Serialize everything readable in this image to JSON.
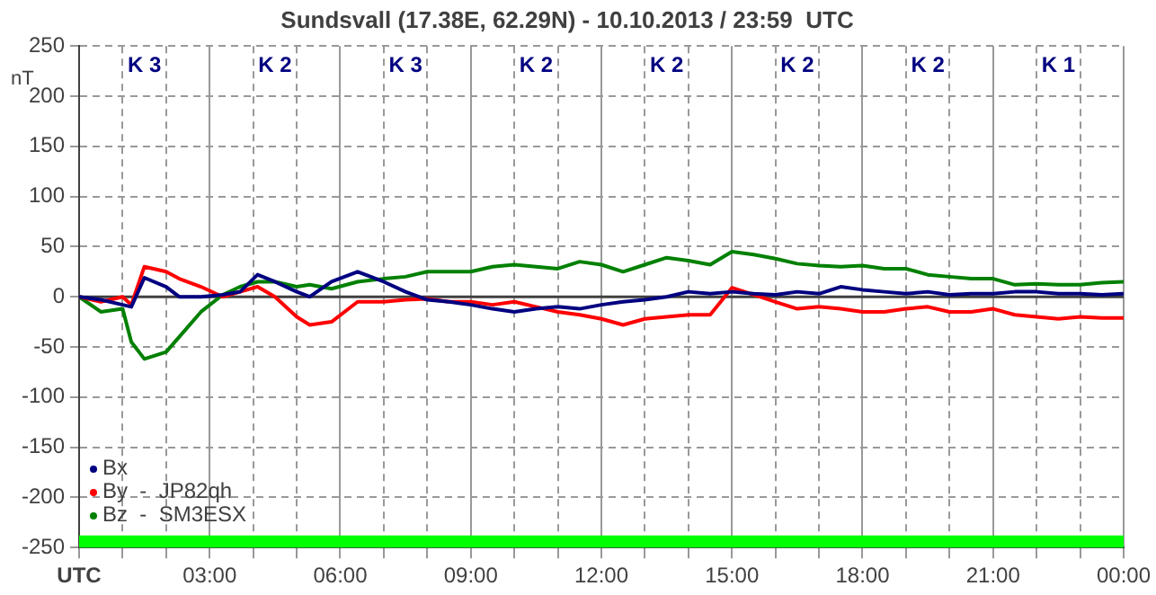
{
  "chart_data": {
    "type": "line",
    "title": "Sundsvall (17.38E, 62.29N) - 10.10.2013 / 23:59  UTC",
    "ylabel": "nT",
    "annotations": [
      "K 3",
      "K 2",
      "K 3",
      "K 2",
      "K 2",
      "K 2",
      "K 2",
      "K 1"
    ],
    "xlim": [
      0,
      24
    ],
    "xticks": [
      {
        "value": 0,
        "label": "UTC"
      },
      {
        "value": 1,
        "label": null
      },
      {
        "value": 2,
        "label": null
      },
      {
        "value": 3,
        "label": "03:00"
      },
      {
        "value": 4,
        "label": null
      },
      {
        "value": 5,
        "label": null
      },
      {
        "value": 6,
        "label": "06:00"
      },
      {
        "value": 7,
        "label": null
      },
      {
        "value": 8,
        "label": null
      },
      {
        "value": 9,
        "label": "09:00"
      },
      {
        "value": 10,
        "label": null
      },
      {
        "value": 11,
        "label": null
      },
      {
        "value": 12,
        "label": "12:00"
      },
      {
        "value": 13,
        "label": null
      },
      {
        "value": 14,
        "label": null
      },
      {
        "value": 15,
        "label": "15:00"
      },
      {
        "value": 16,
        "label": null
      },
      {
        "value": 17,
        "label": null
      },
      {
        "value": 18,
        "label": "18:00"
      },
      {
        "value": 19,
        "label": null
      },
      {
        "value": 20,
        "label": null
      },
      {
        "value": 21,
        "label": "21:00"
      },
      {
        "value": 22,
        "label": null
      },
      {
        "value": 23,
        "label": null
      },
      {
        "value": 24,
        "label": "00:00"
      }
    ],
    "ylim": [
      -250,
      250
    ],
    "yticks": [
      -250,
      -200,
      -150,
      -100,
      -50,
      0,
      50,
      100,
      150,
      200,
      250
    ],
    "grid": true,
    "legend": "bottom left",
    "marker": "none",
    "line_style": "solid",
    "ref_lines": [
      {
        "axis": "y",
        "value": 0,
        "color": "#404040"
      }
    ],
    "bands": [
      {
        "axis": "y",
        "from": -250,
        "to": -238,
        "color": "#00ff00"
      }
    ],
    "x": [
      0,
      0.5,
      1,
      1.2,
      1.5,
      2,
      2.3,
      2.8,
      3.3,
      3.7,
      4.1,
      4.5,
      5,
      5.3,
      5.8,
      6.4,
      7,
      7.5,
      8,
      8.5,
      9,
      9.5,
      10,
      10.5,
      11,
      11.5,
      12,
      12.5,
      13,
      13.5,
      14,
      14.5,
      15,
      15.5,
      16,
      16.5,
      17,
      17.5,
      18,
      18.5,
      19,
      19.5,
      20,
      20.5,
      21,
      21.5,
      22,
      22.5,
      23,
      23.5,
      24
    ],
    "series": [
      {
        "name": "Bx",
        "color": "#000080",
        "values": [
          0,
          -3,
          -8,
          -10,
          19,
          10,
          0,
          0,
          2,
          5,
          22,
          15,
          5,
          0,
          15,
          25,
          15,
          5,
          -3,
          -5,
          -8,
          -12,
          -15,
          -12,
          -10,
          -12,
          -8,
          -5,
          -3,
          0,
          5,
          3,
          5,
          3,
          2,
          5,
          3,
          10,
          7,
          5,
          3,
          5,
          2,
          3,
          3,
          5,
          5,
          3,
          3,
          2,
          3
        ]
      },
      {
        "name": "By  -  JP82qh",
        "color": "#ff0000",
        "values": [
          0,
          -5,
          0,
          -8,
          30,
          25,
          18,
          10,
          0,
          5,
          10,
          0,
          -20,
          -28,
          -25,
          -5,
          -5,
          -3,
          -2,
          -5,
          -5,
          -8,
          -5,
          -10,
          -15,
          -18,
          -22,
          -28,
          -22,
          -20,
          -18,
          -18,
          9,
          2,
          -5,
          -12,
          -10,
          -12,
          -15,
          -15,
          -12,
          -10,
          -15,
          -15,
          -12,
          -18,
          -20,
          -22,
          -20,
          -21,
          -21
        ]
      },
      {
        "name": "Bz  -  SM3ESX",
        "color": "#008000",
        "values": [
          0,
          -15,
          -12,
          -45,
          -62,
          -55,
          -40,
          -15,
          2,
          10,
          15,
          15,
          10,
          12,
          8,
          15,
          18,
          20,
          25,
          25,
          25,
          30,
          32,
          30,
          28,
          35,
          32,
          25,
          32,
          39,
          36,
          32,
          45,
          42,
          38,
          33,
          31,
          30,
          31,
          28,
          28,
          22,
          20,
          18,
          18,
          12,
          13,
          12,
          12,
          14,
          15
        ]
      }
    ]
  }
}
